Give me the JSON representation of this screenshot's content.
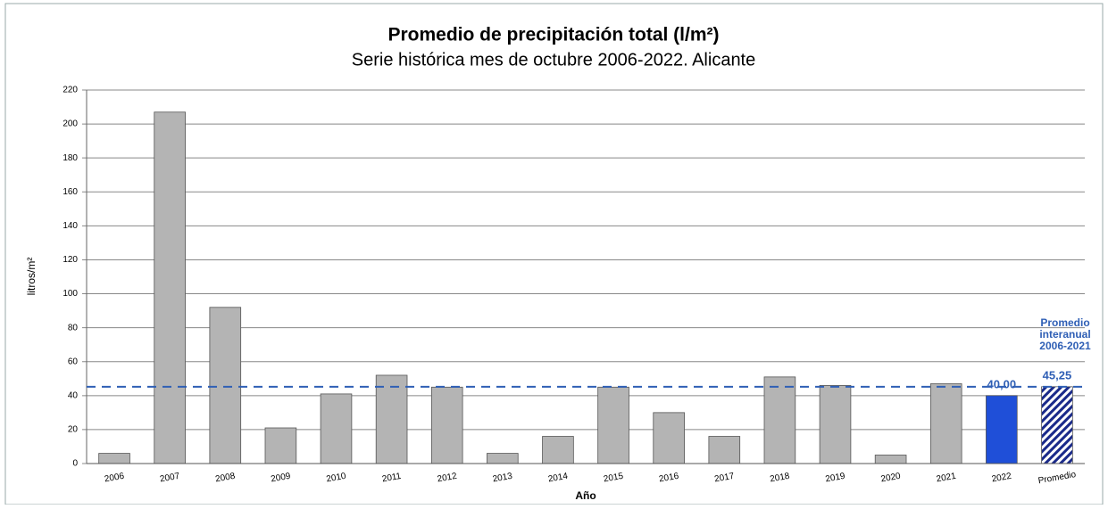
{
  "chart_data": {
    "type": "bar",
    "title": "Promedio de precipitación total (l/m²)",
    "subtitle": "Serie histórica mes de octubre 2006-2022. Alicante",
    "y_label": "litros/m²",
    "x_label": "Año",
    "categories": [
      "2006",
      "2007",
      "2008",
      "2009",
      "2010",
      "2011",
      "2012",
      "2013",
      "2014",
      "2015",
      "2016",
      "2017",
      "2018",
      "2019",
      "2020",
      "2021",
      "2022",
      "Promedio"
    ],
    "values": [
      6,
      207,
      92,
      21,
      41,
      52,
      45,
      6,
      16,
      45,
      30,
      16,
      51,
      46,
      5,
      47,
      40,
      45.25
    ],
    "value_labels": [
      null,
      null,
      null,
      null,
      null,
      null,
      null,
      null,
      null,
      null,
      null,
      null,
      null,
      null,
      null,
      null,
      "40,00",
      "45,25"
    ],
    "colors": [
      "#b4b4b4",
      "#b4b4b4",
      "#b4b4b4",
      "#b4b4b4",
      "#b4b4b4",
      "#b4b4b4",
      "#b4b4b4",
      "#b4b4b4",
      "#b4b4b4",
      "#b4b4b4",
      "#b4b4b4",
      "#b4b4b4",
      "#b4b4b4",
      "#b4b4b4",
      "#b4b4b4",
      "#b4b4b4",
      "#1f4fd8",
      "hatch"
    ],
    "reference_line": {
      "value": 45.25,
      "color": "#2f5fb5",
      "label_lines": [
        "Promedio",
        "interanual",
        "2006-2021"
      ]
    },
    "ylim": [
      0,
      220
    ],
    "yticks": [
      0,
      20,
      40,
      60,
      80,
      100,
      120,
      140,
      160,
      180,
      200,
      220
    ],
    "grid": true
  }
}
